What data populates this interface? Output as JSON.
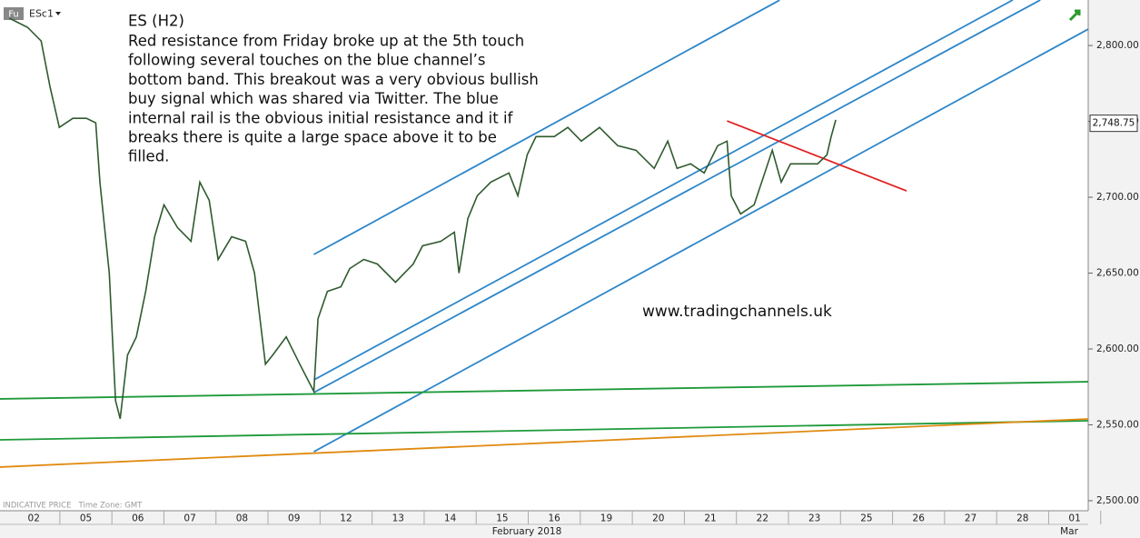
{
  "chart_data": {
    "type": "line",
    "instrument": "ESc1",
    "instrument_type": "Fu",
    "title": "ES (H2)",
    "annotation_lines": [
      "Red resistance from Friday broke up at the 5th touch",
      "following several touches on the blue channel’s",
      "bottom band. This breakout was a very obvious bullish",
      "buy signal which was shared via Twitter. The blue",
      "internal rail is the obvious initial resistance and it if",
      "breaks there is quite a large space above it to be",
      "filled."
    ],
    "watermark": "www.tradingchannels.uk",
    "footer_note": "INDICATIVE PRICE   Time Zone: GMT",
    "month_label": "February 2018",
    "next_month_label": "Mar",
    "series": [
      {
        "name": "ESc1",
        "color": "#2f5a2f",
        "x": [
          -0.47,
          -0.12,
          0.14,
          0.31,
          0.49,
          0.75,
          1.01,
          1.19,
          1.27,
          1.45,
          1.57,
          1.66,
          1.8,
          1.97,
          2.15,
          2.32,
          2.5,
          2.76,
          3.02,
          3.19,
          3.37,
          3.54,
          3.8,
          4.07,
          4.24,
          4.45,
          4.59,
          4.85,
          5.11,
          5.38,
          5.46,
          5.64,
          5.9,
          6.07,
          6.34,
          6.6,
          6.95,
          7.29,
          7.47,
          7.82,
          8.08,
          8.17,
          8.34,
          8.52,
          8.78,
          9.13,
          9.3,
          9.48,
          9.65,
          10,
          10.26,
          10.52,
          10.87,
          11.22,
          11.57,
          11.92,
          12.18,
          12.36,
          12.62,
          12.88,
          13.14,
          13.32,
          13.4,
          13.58,
          13.84,
          14.19,
          14.36,
          14.54,
          14.8,
          15.06,
          15.24,
          15.32,
          15.41
        ],
        "values": [
          2818,
          2812,
          2803,
          2773,
          2746,
          2752,
          2752,
          2749,
          2710,
          2650,
          2566,
          2554,
          2596,
          2608,
          2638,
          2674,
          2695,
          2680,
          2671,
          2710,
          2698,
          2659,
          2674,
          2671,
          2650,
          2590,
          2596,
          2608,
          2590,
          2572,
          2620,
          2638,
          2641,
          2653,
          2659,
          2656,
          2644,
          2656,
          2668,
          2671,
          2677,
          2650,
          2686,
          2701,
          2710,
          2716,
          2701,
          2728,
          2740,
          2740,
          2746,
          2737,
          2746,
          2734,
          2731,
          2719,
          2737,
          2719,
          2722,
          2716,
          2734,
          2737,
          2701,
          2689,
          2695,
          2731,
          2710,
          2722,
          2722,
          2722,
          2728,
          2740,
          2751
        ]
      }
    ],
    "trend_lines": [
      {
        "color": "#2e86c8",
        "x": [
          5.38,
          14.33
        ],
        "values": [
          2662.3,
          2829.9
        ]
      },
      {
        "color": "#2e86c8",
        "x": [
          5.38,
          18.81
        ],
        "values": [
          2579.6,
          2830
        ]
      },
      {
        "color": "#2e86c8",
        "x": [
          5.38,
          19.34
        ],
        "values": [
          2571.3,
          2830
        ]
      },
      {
        "color": "#2e86c8",
        "x": [
          5.38,
          20.26
        ],
        "values": [
          2532.3,
          2810.8
        ]
      },
      {
        "color": "#e02020",
        "x": [
          13.32,
          16.77
        ],
        "values": [
          2750.3,
          2704.2
        ]
      },
      {
        "color": "#1e9a3a",
        "x": [
          -0.65,
          20.26
        ],
        "values": [
          2567.1,
          2578.4
        ]
      },
      {
        "color": "#1e9a3a",
        "x": [
          -0.65,
          20.26
        ],
        "values": [
          2540.1,
          2552.7
        ]
      },
      {
        "color": "#e08a10",
        "x": [
          -0.65,
          20.26
        ],
        "values": [
          2522.2,
          2553.9
        ]
      }
    ],
    "last_price": {
      "value": 2748.75,
      "label": "2,748.75"
    },
    "xlim": [
      -0.65,
      20.26
    ],
    "ylim": [
      2493.4,
      2830
    ],
    "xticks": [
      {
        "value": 0,
        "label": "02"
      },
      {
        "value": 1,
        "label": "05"
      },
      {
        "value": 2,
        "label": "06"
      },
      {
        "value": 3,
        "label": "07"
      },
      {
        "value": 4,
        "label": "08"
      },
      {
        "value": 5,
        "label": "09"
      },
      {
        "value": 6,
        "label": "12"
      },
      {
        "value": 7,
        "label": "13"
      },
      {
        "value": 8,
        "label": "14"
      },
      {
        "value": 9,
        "label": "15"
      },
      {
        "value": 10,
        "label": "16"
      },
      {
        "value": 11,
        "label": "19"
      },
      {
        "value": 12,
        "label": "20"
      },
      {
        "value": 13,
        "label": "21"
      },
      {
        "value": 14,
        "label": "22"
      },
      {
        "value": 15,
        "label": "23"
      },
      {
        "value": 16,
        "label": "25"
      },
      {
        "value": 17,
        "label": "26"
      },
      {
        "value": 18,
        "label": "27"
      },
      {
        "value": 19,
        "label": "28"
      },
      {
        "value": 20,
        "label": "01"
      }
    ],
    "yticks": [
      {
        "value": 2500,
        "label": "2,500.00"
      },
      {
        "value": 2550,
        "label": "2,550.00"
      },
      {
        "value": 2600,
        "label": "2,600.00"
      },
      {
        "value": 2650,
        "label": "2,650.00"
      },
      {
        "value": 2700,
        "label": "2,700.00"
      },
      {
        "value": 2750,
        "label": "2,750.00"
      },
      {
        "value": 2800,
        "label": "2,800.00"
      }
    ]
  }
}
